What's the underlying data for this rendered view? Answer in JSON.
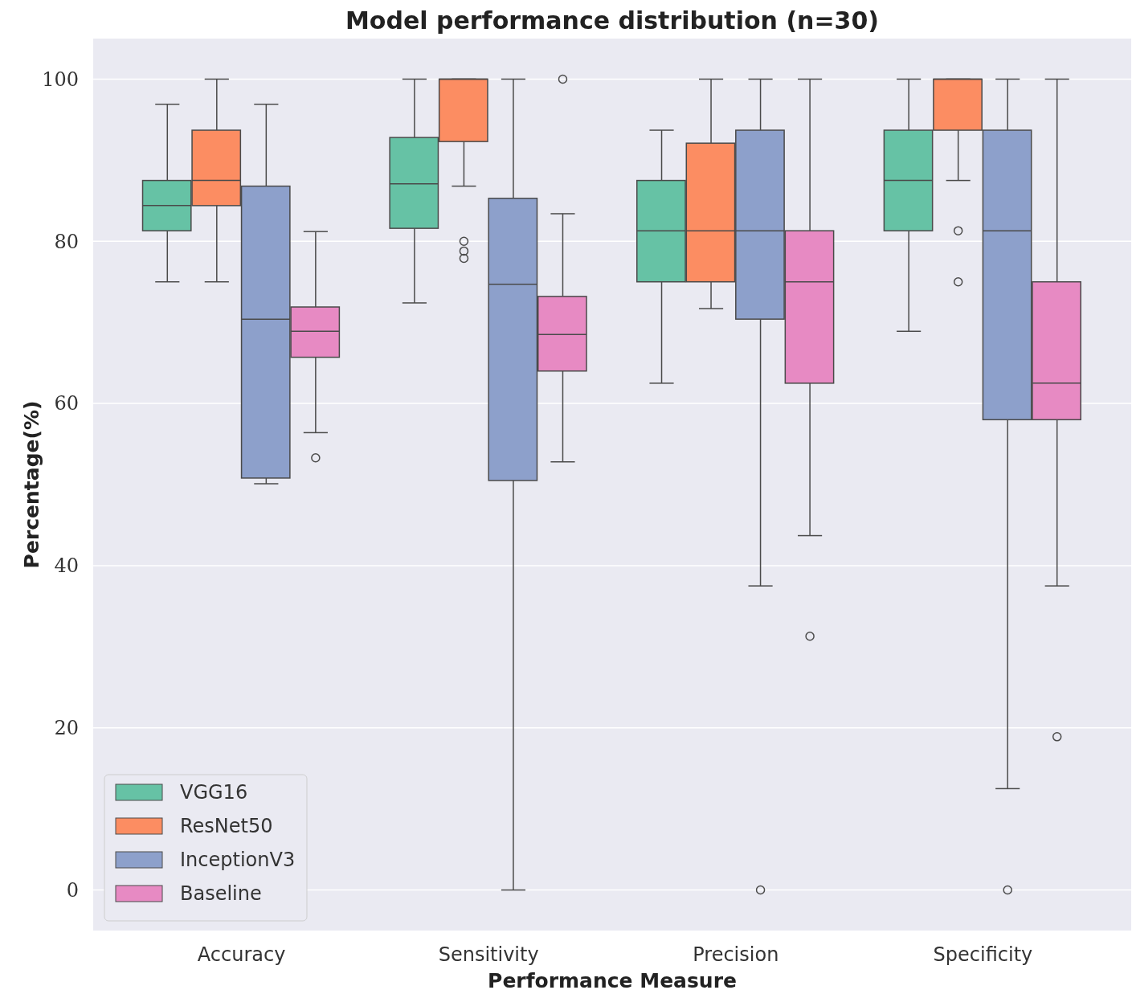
{
  "chart_data": {
    "type": "box",
    "title": "Model performance distribution (n=30)",
    "xlabel": "Performance Measure",
    "ylabel": "Percentage(%)",
    "categories": [
      "Accuracy",
      "Sensitivity",
      "Precision",
      "Specificity"
    ],
    "ylim": [
      -5,
      105
    ],
    "yticks": [
      0,
      20,
      40,
      60,
      80,
      100
    ],
    "grid": "y",
    "legend": "bottom left",
    "series": [
      {
        "name": "VGG16",
        "color": "#66c2a5",
        "boxes": [
          {
            "low": 75,
            "q1": 81.3,
            "median": 84.4,
            "q3": 87.5,
            "high": 96.9
          },
          {
            "low": 72.4,
            "q1": 81.6,
            "median": 87.1,
            "q3": 92.8,
            "high": 100
          },
          {
            "low": 62.5,
            "q1": 75,
            "median": 81.3,
            "q3": 87.5,
            "high": 93.7
          },
          {
            "low": 68.9,
            "q1": 81.3,
            "median": 87.5,
            "q3": 93.7,
            "high": 100
          }
        ]
      },
      {
        "name": "ResNet50",
        "color": "#fc8d62",
        "boxes": [
          {
            "low": 75,
            "q1": 84.4,
            "median": 87.5,
            "q3": 93.7,
            "high": 100
          },
          {
            "low": 86.8,
            "q1": 92.3,
            "median": 100,
            "q3": 100,
            "high": 100,
            "outliers": [
              80,
              78.8,
              77.9
            ]
          },
          {
            "low": 71.7,
            "q1": 75,
            "median": 81.3,
            "q3": 92.1,
            "high": 100
          },
          {
            "low": 87.5,
            "q1": 93.7,
            "median": 100,
            "q3": 100,
            "high": 100,
            "outliers": [
              81.3,
              75
            ]
          }
        ]
      },
      {
        "name": "InceptionV3",
        "color": "#8da0cb",
        "boxes": [
          {
            "low": 50.1,
            "q1": 50.8,
            "median": 70.4,
            "q3": 86.8,
            "high": 96.9
          },
          {
            "low": 0,
            "q1": 50.5,
            "median": 74.7,
            "q3": 85.3,
            "high": 100
          },
          {
            "low": 37.5,
            "q1": 70.4,
            "median": 81.3,
            "q3": 93.7,
            "high": 100,
            "outliers": [
              0
            ]
          },
          {
            "low": 12.5,
            "q1": 58,
            "median": 81.3,
            "q3": 93.7,
            "high": 100,
            "outliers": [
              0
            ]
          }
        ]
      },
      {
        "name": "Baseline",
        "color": "#e78ac3",
        "boxes": [
          {
            "low": 56.4,
            "q1": 65.7,
            "median": 68.9,
            "q3": 71.9,
            "high": 81.2,
            "outliers": [
              53.3
            ]
          },
          {
            "low": 52.8,
            "q1": 64,
            "median": 68.5,
            "q3": 73.2,
            "high": 83.4,
            "outliers": [
              100
            ]
          },
          {
            "low": 43.7,
            "q1": 62.5,
            "median": 75,
            "q3": 81.3,
            "high": 100,
            "outliers": [
              31.3
            ]
          },
          {
            "low": 37.5,
            "q1": 58,
            "median": 62.5,
            "q3": 75,
            "high": 100,
            "outliers": [
              18.9
            ]
          }
        ]
      }
    ]
  }
}
